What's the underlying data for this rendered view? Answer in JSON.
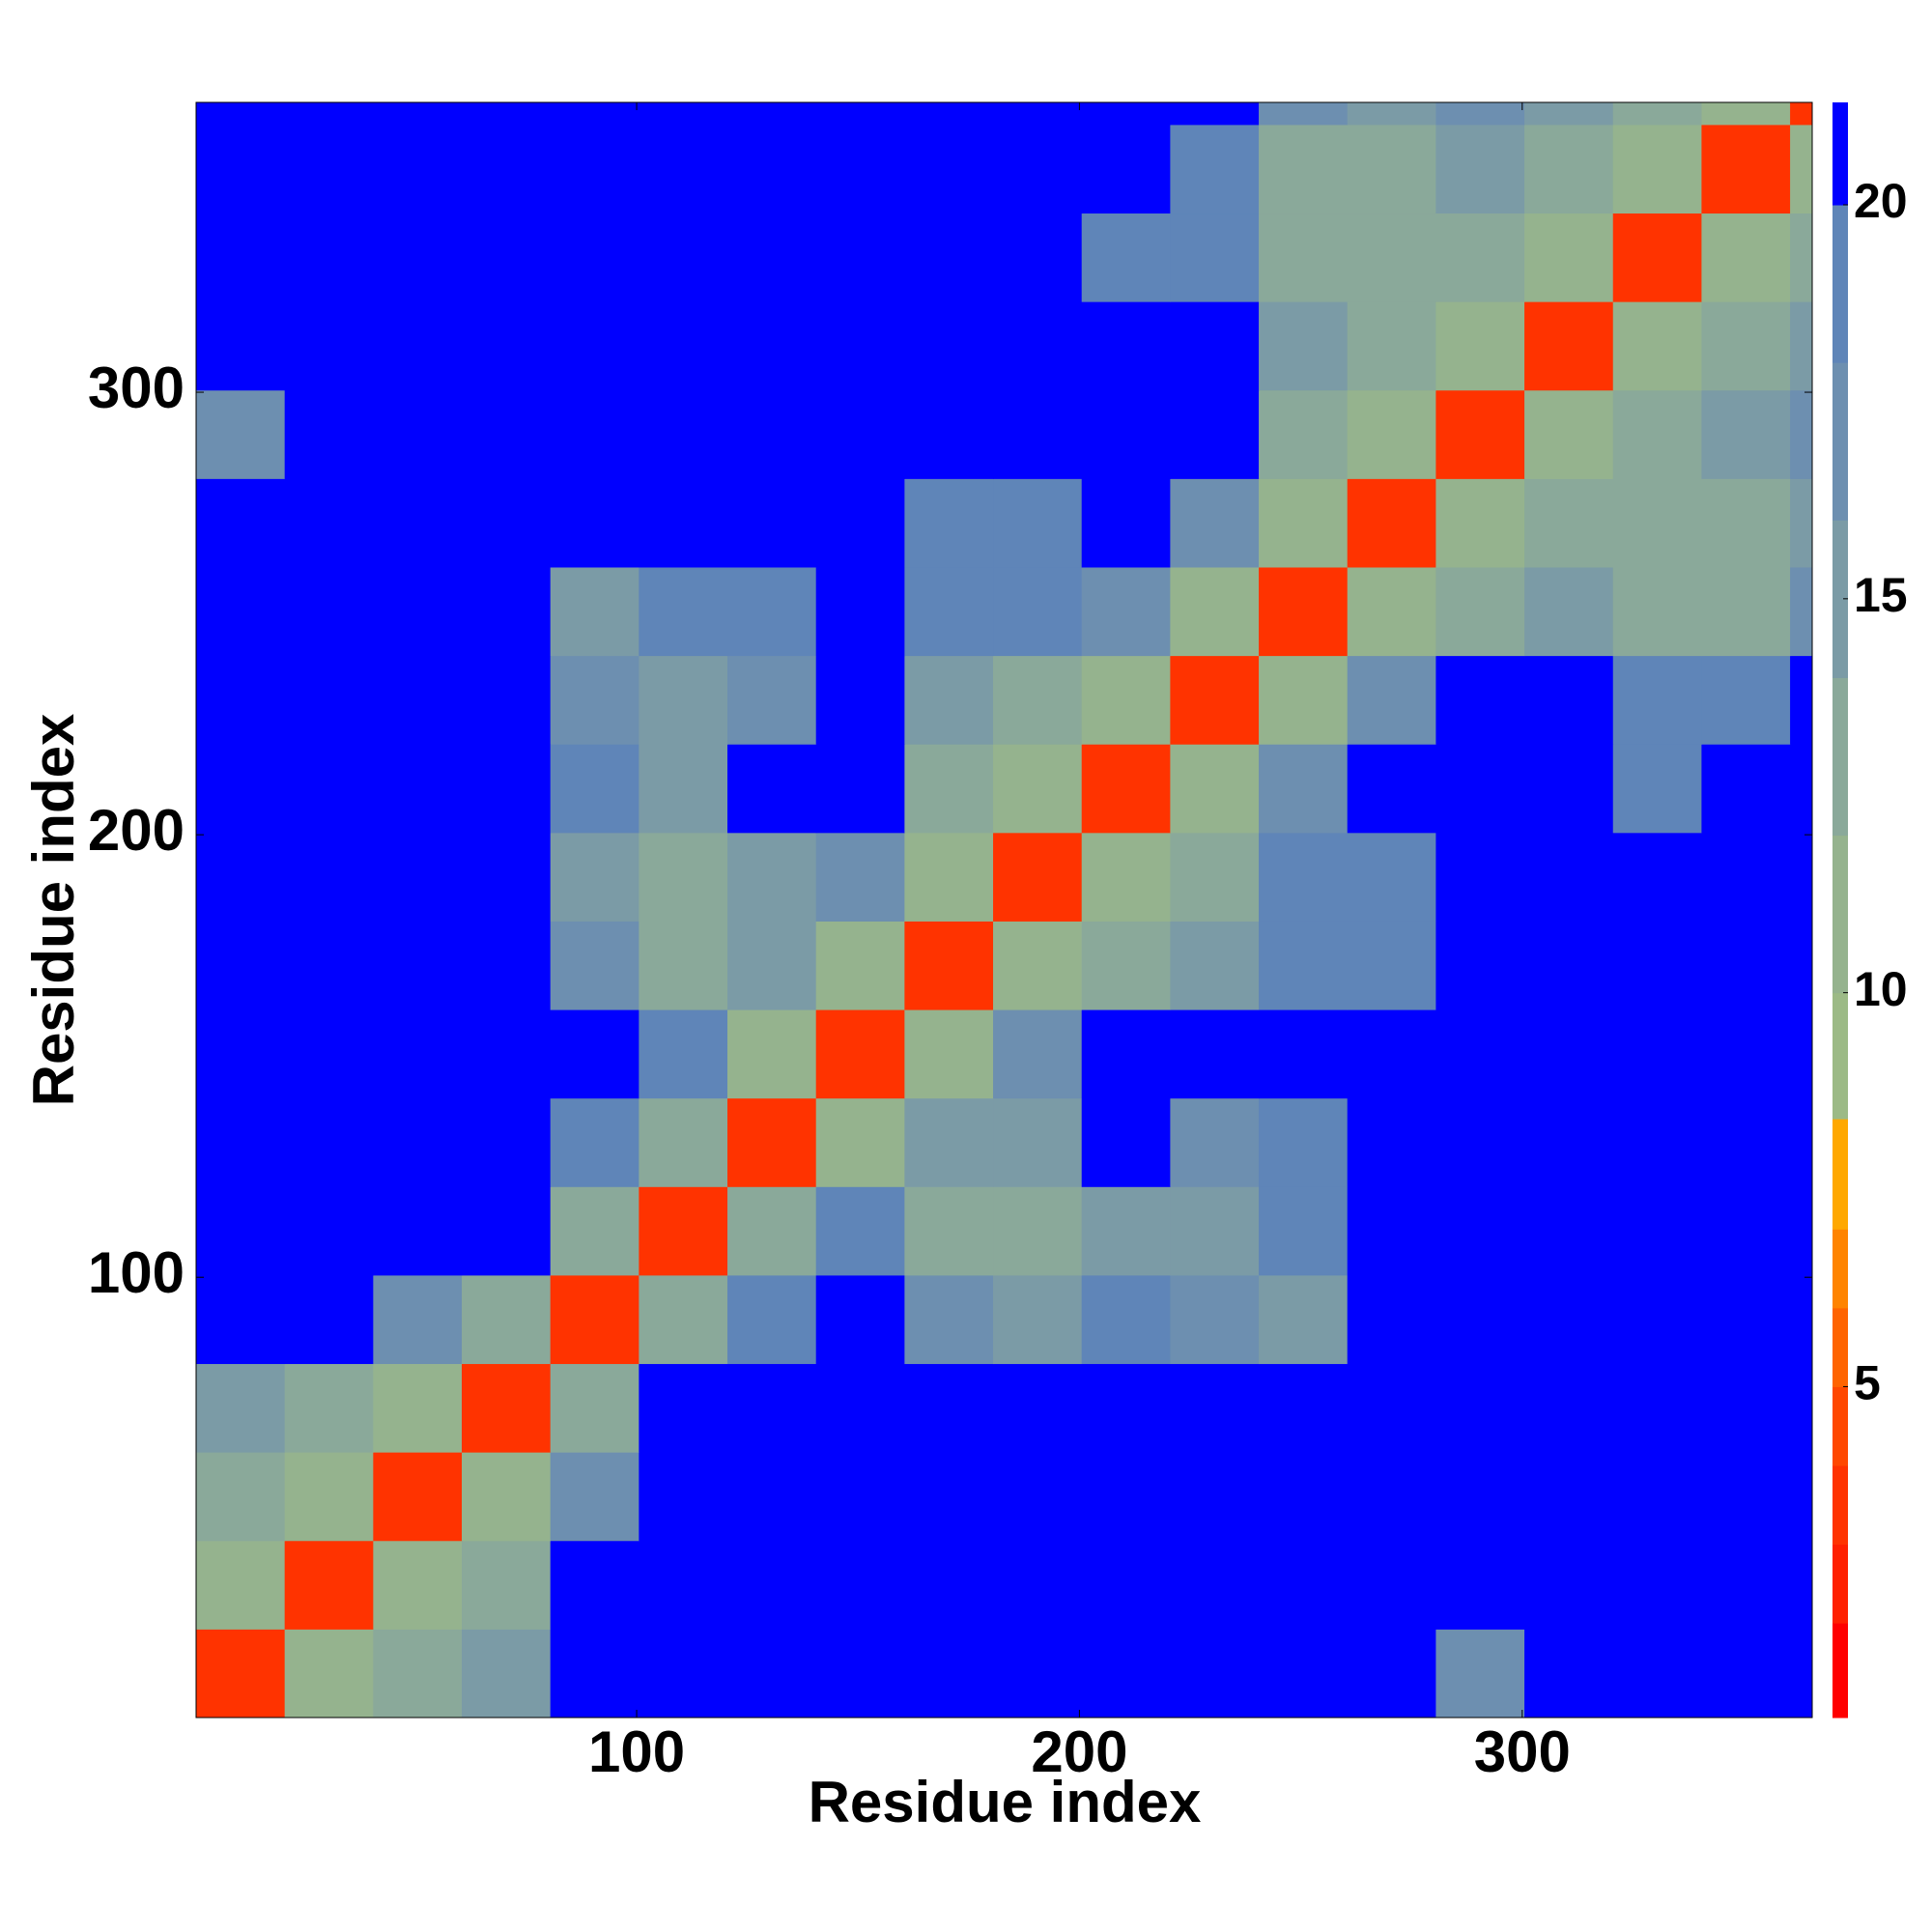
{
  "chart_data": {
    "type": "heatmap",
    "x_label": "Residue index",
    "y_label": "Residue index",
    "bins": [
      0.5,
      20.5,
      40.5,
      60.5,
      80.5,
      100.5,
      120.5,
      140.5,
      160.5,
      180.5,
      200.5,
      220.5,
      240.5,
      260.5,
      280.5,
      300.5,
      320.5,
      340.5,
      360.5,
      365.5
    ],
    "values": [
      [
        3,
        10,
        12,
        14,
        21,
        21,
        21,
        21,
        21,
        21,
        21,
        21,
        21,
        21,
        16,
        21,
        21,
        21,
        21
      ],
      [
        10,
        3,
        10,
        12,
        21,
        21,
        21,
        21,
        21,
        21,
        21,
        21,
        21,
        21,
        21,
        21,
        21,
        21,
        21
      ],
      [
        12,
        10,
        3,
        10,
        16,
        21,
        21,
        21,
        21,
        21,
        21,
        21,
        21,
        21,
        21,
        21,
        21,
        21,
        21
      ],
      [
        14,
        12,
        10,
        3,
        12,
        21,
        21,
        21,
        21,
        21,
        21,
        21,
        21,
        21,
        21,
        21,
        21,
        21,
        21
      ],
      [
        21,
        21,
        16,
        12,
        3,
        12,
        18,
        21,
        17,
        15,
        18,
        16,
        15,
        21,
        21,
        21,
        21,
        21,
        21
      ],
      [
        21,
        21,
        21,
        21,
        12,
        3,
        12,
        18,
        13,
        12,
        15,
        14,
        18,
        21,
        21,
        21,
        21,
        21,
        21
      ],
      [
        21,
        21,
        21,
        21,
        18,
        12,
        3,
        10,
        14,
        14,
        21,
        17,
        19,
        20,
        21,
        21,
        21,
        21,
        21
      ],
      [
        21,
        21,
        21,
        21,
        21,
        18,
        10,
        3,
        10,
        16,
        21,
        21,
        21,
        21,
        21,
        21,
        21,
        21,
        21
      ],
      [
        21,
        21,
        21,
        21,
        17,
        13,
        14,
        10,
        3,
        10,
        12,
        14,
        18,
        19,
        21,
        21,
        21,
        21,
        21
      ],
      [
        21,
        21,
        21,
        21,
        15,
        12,
        14,
        16,
        10,
        3,
        10,
        12,
        18,
        19,
        21,
        21,
        20,
        21,
        21
      ],
      [
        21,
        21,
        21,
        21,
        18,
        15,
        21,
        21,
        12,
        10,
        3,
        10,
        16,
        21,
        21,
        21,
        19,
        21,
        21
      ],
      [
        21,
        21,
        21,
        21,
        16,
        14,
        17,
        21,
        14,
        12,
        10,
        3,
        10,
        16,
        21,
        21,
        18,
        19,
        21
      ],
      [
        21,
        21,
        21,
        21,
        15,
        18,
        19,
        21,
        18,
        18,
        16,
        10,
        3,
        10,
        13,
        14,
        13,
        13,
        16
      ],
      [
        21,
        21,
        21,
        21,
        21,
        21,
        20,
        21,
        19,
        19,
        21,
        16,
        10,
        3,
        10,
        13,
        12,
        13,
        15
      ],
      [
        16,
        21,
        21,
        21,
        21,
        21,
        21,
        21,
        21,
        21,
        21,
        21,
        13,
        10,
        3,
        10,
        13,
        14,
        16
      ],
      [
        21,
        21,
        21,
        21,
        21,
        21,
        21,
        21,
        21,
        21,
        21,
        21,
        14,
        13,
        10,
        3,
        10,
        13,
        14
      ],
      [
        21,
        21,
        21,
        21,
        21,
        21,
        21,
        21,
        21,
        20,
        19,
        18,
        13,
        12,
        13,
        10,
        3,
        10,
        13
      ],
      [
        21,
        21,
        21,
        21,
        21,
        21,
        21,
        21,
        21,
        21,
        21,
        19,
        13,
        13,
        14,
        13,
        10,
        3,
        10
      ],
      [
        21,
        21,
        21,
        21,
        21,
        21,
        21,
        21,
        21,
        21,
        21,
        21,
        16,
        15,
        16,
        14,
        13,
        10,
        3
      ]
    ],
    "xlim": [
      0.5,
      365.5
    ],
    "ylim": [
      0.5,
      365.5
    ],
    "xticks": [
      100,
      200,
      300
    ],
    "yticks": [
      100,
      200,
      300
    ],
    "colorbar": {
      "lim": [
        0.8,
        21.3
      ],
      "ticks": [
        5,
        10,
        15,
        20
      ],
      "levels": [
        0.8,
        2,
        3,
        4,
        5,
        6,
        7,
        8.4,
        10,
        12,
        14,
        16,
        18,
        20,
        21.3
      ],
      "colors": [
        "#ff0000",
        "#ff2000",
        "#ff3300",
        "#ff4800",
        "#ff6400",
        "#ff8400",
        "#ffa800",
        "#9cba86",
        "#95b38e",
        "#8aa99a",
        "#7b9ba6",
        "#6d8fb0",
        "#5f85b8",
        "#0000ff"
      ]
    }
  }
}
